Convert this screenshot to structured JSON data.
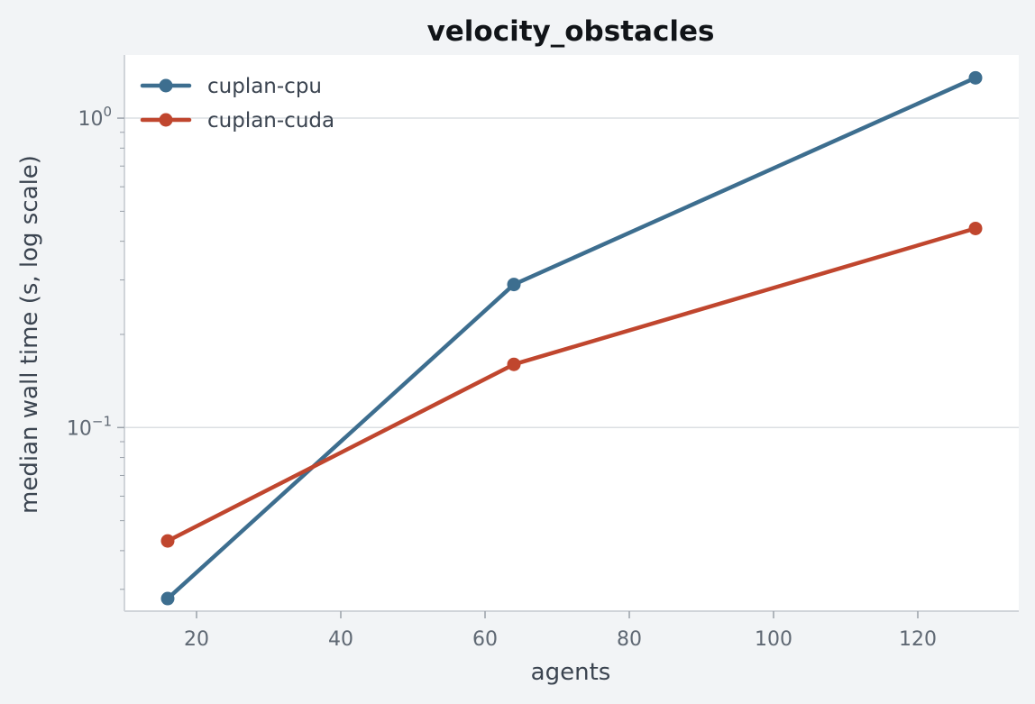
{
  "chart_data": {
    "type": "line",
    "title": "velocity_obstacles",
    "xlabel": "agents",
    "ylabel": "median wall time (s, log scale)",
    "xscale": "linear",
    "yscale": "log",
    "xlim": [
      10,
      134
    ],
    "ylim": [
      0.0255,
      1.6
    ],
    "xticks": [
      20,
      40,
      60,
      80,
      100,
      120
    ],
    "xtick_labels": [
      "20",
      "40",
      "60",
      "80",
      "100",
      "120"
    ],
    "yticks": [
      0.1,
      1.0
    ],
    "ytick_labels": [
      {
        "base": "10",
        "exp": "−1"
      },
      {
        "base": "10",
        "exp": "0"
      }
    ],
    "grid": "y-major",
    "legend_position": "top-left",
    "series": [
      {
        "name": "cuplan-cpu",
        "color": "#3d6e8f",
        "x": [
          16,
          64,
          128
        ],
        "y": [
          0.028,
          0.29,
          1.35
        ]
      },
      {
        "name": "cuplan-cuda",
        "color": "#c0462e",
        "x": [
          16,
          64,
          128
        ],
        "y": [
          0.043,
          0.16,
          0.44
        ]
      }
    ]
  }
}
